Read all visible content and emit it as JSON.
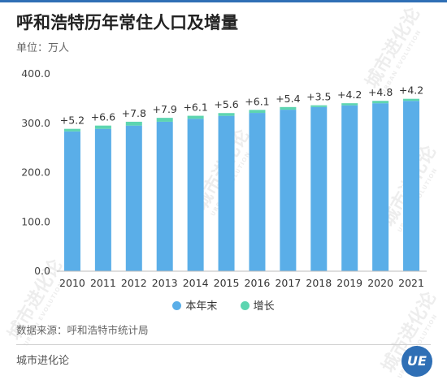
{
  "header": {
    "title": "呼和浩特历年常住人口及增量",
    "unit": "单位：万人"
  },
  "chart_data": {
    "type": "bar",
    "stacked": true,
    "categories": [
      "2010",
      "2011",
      "2012",
      "2013",
      "2014",
      "2015",
      "2016",
      "2017",
      "2018",
      "2019",
      "2020",
      "2021"
    ],
    "series": [
      {
        "name": "本年末",
        "values": [
          283.4,
          288.6,
          295.2,
          303.0,
          309.0,
          315.0,
          320.9,
          327.4,
          332.8,
          336.3,
          340.5,
          345.3
        ]
      },
      {
        "name": "增长",
        "values": [
          5.2,
          6.6,
          7.8,
          7.9,
          6.1,
          5.6,
          6.1,
          5.4,
          3.5,
          4.2,
          4.8,
          4.2
        ]
      }
    ],
    "data_labels": [
      "+5.2",
      "+6.6",
      "+7.8",
      "+7.9",
      "+6.1",
      "+5.6",
      "+6.1",
      "+5.4",
      "+3.5",
      "+4.2",
      "+4.8",
      "+4.2"
    ],
    "y_ticks": [
      "0.0",
      "100.0",
      "200.0",
      "300.0",
      "400.0"
    ],
    "ylim": [
      0,
      400
    ],
    "grid": false,
    "legend_position": "bottom-center",
    "colors": {
      "base": "#5aaee8",
      "increase": "#5dd5b0",
      "axis": "#bdbdbd"
    }
  },
  "legend": {
    "base_label": "本年末",
    "increase_label": "增长"
  },
  "footer": {
    "source": "数据来源：呼和浩特市统计局",
    "brand": "城市进化论",
    "logo_text": "UE",
    "watermark": "城市进化论",
    "watermark_en": "URBAN EVOLUTION"
  }
}
